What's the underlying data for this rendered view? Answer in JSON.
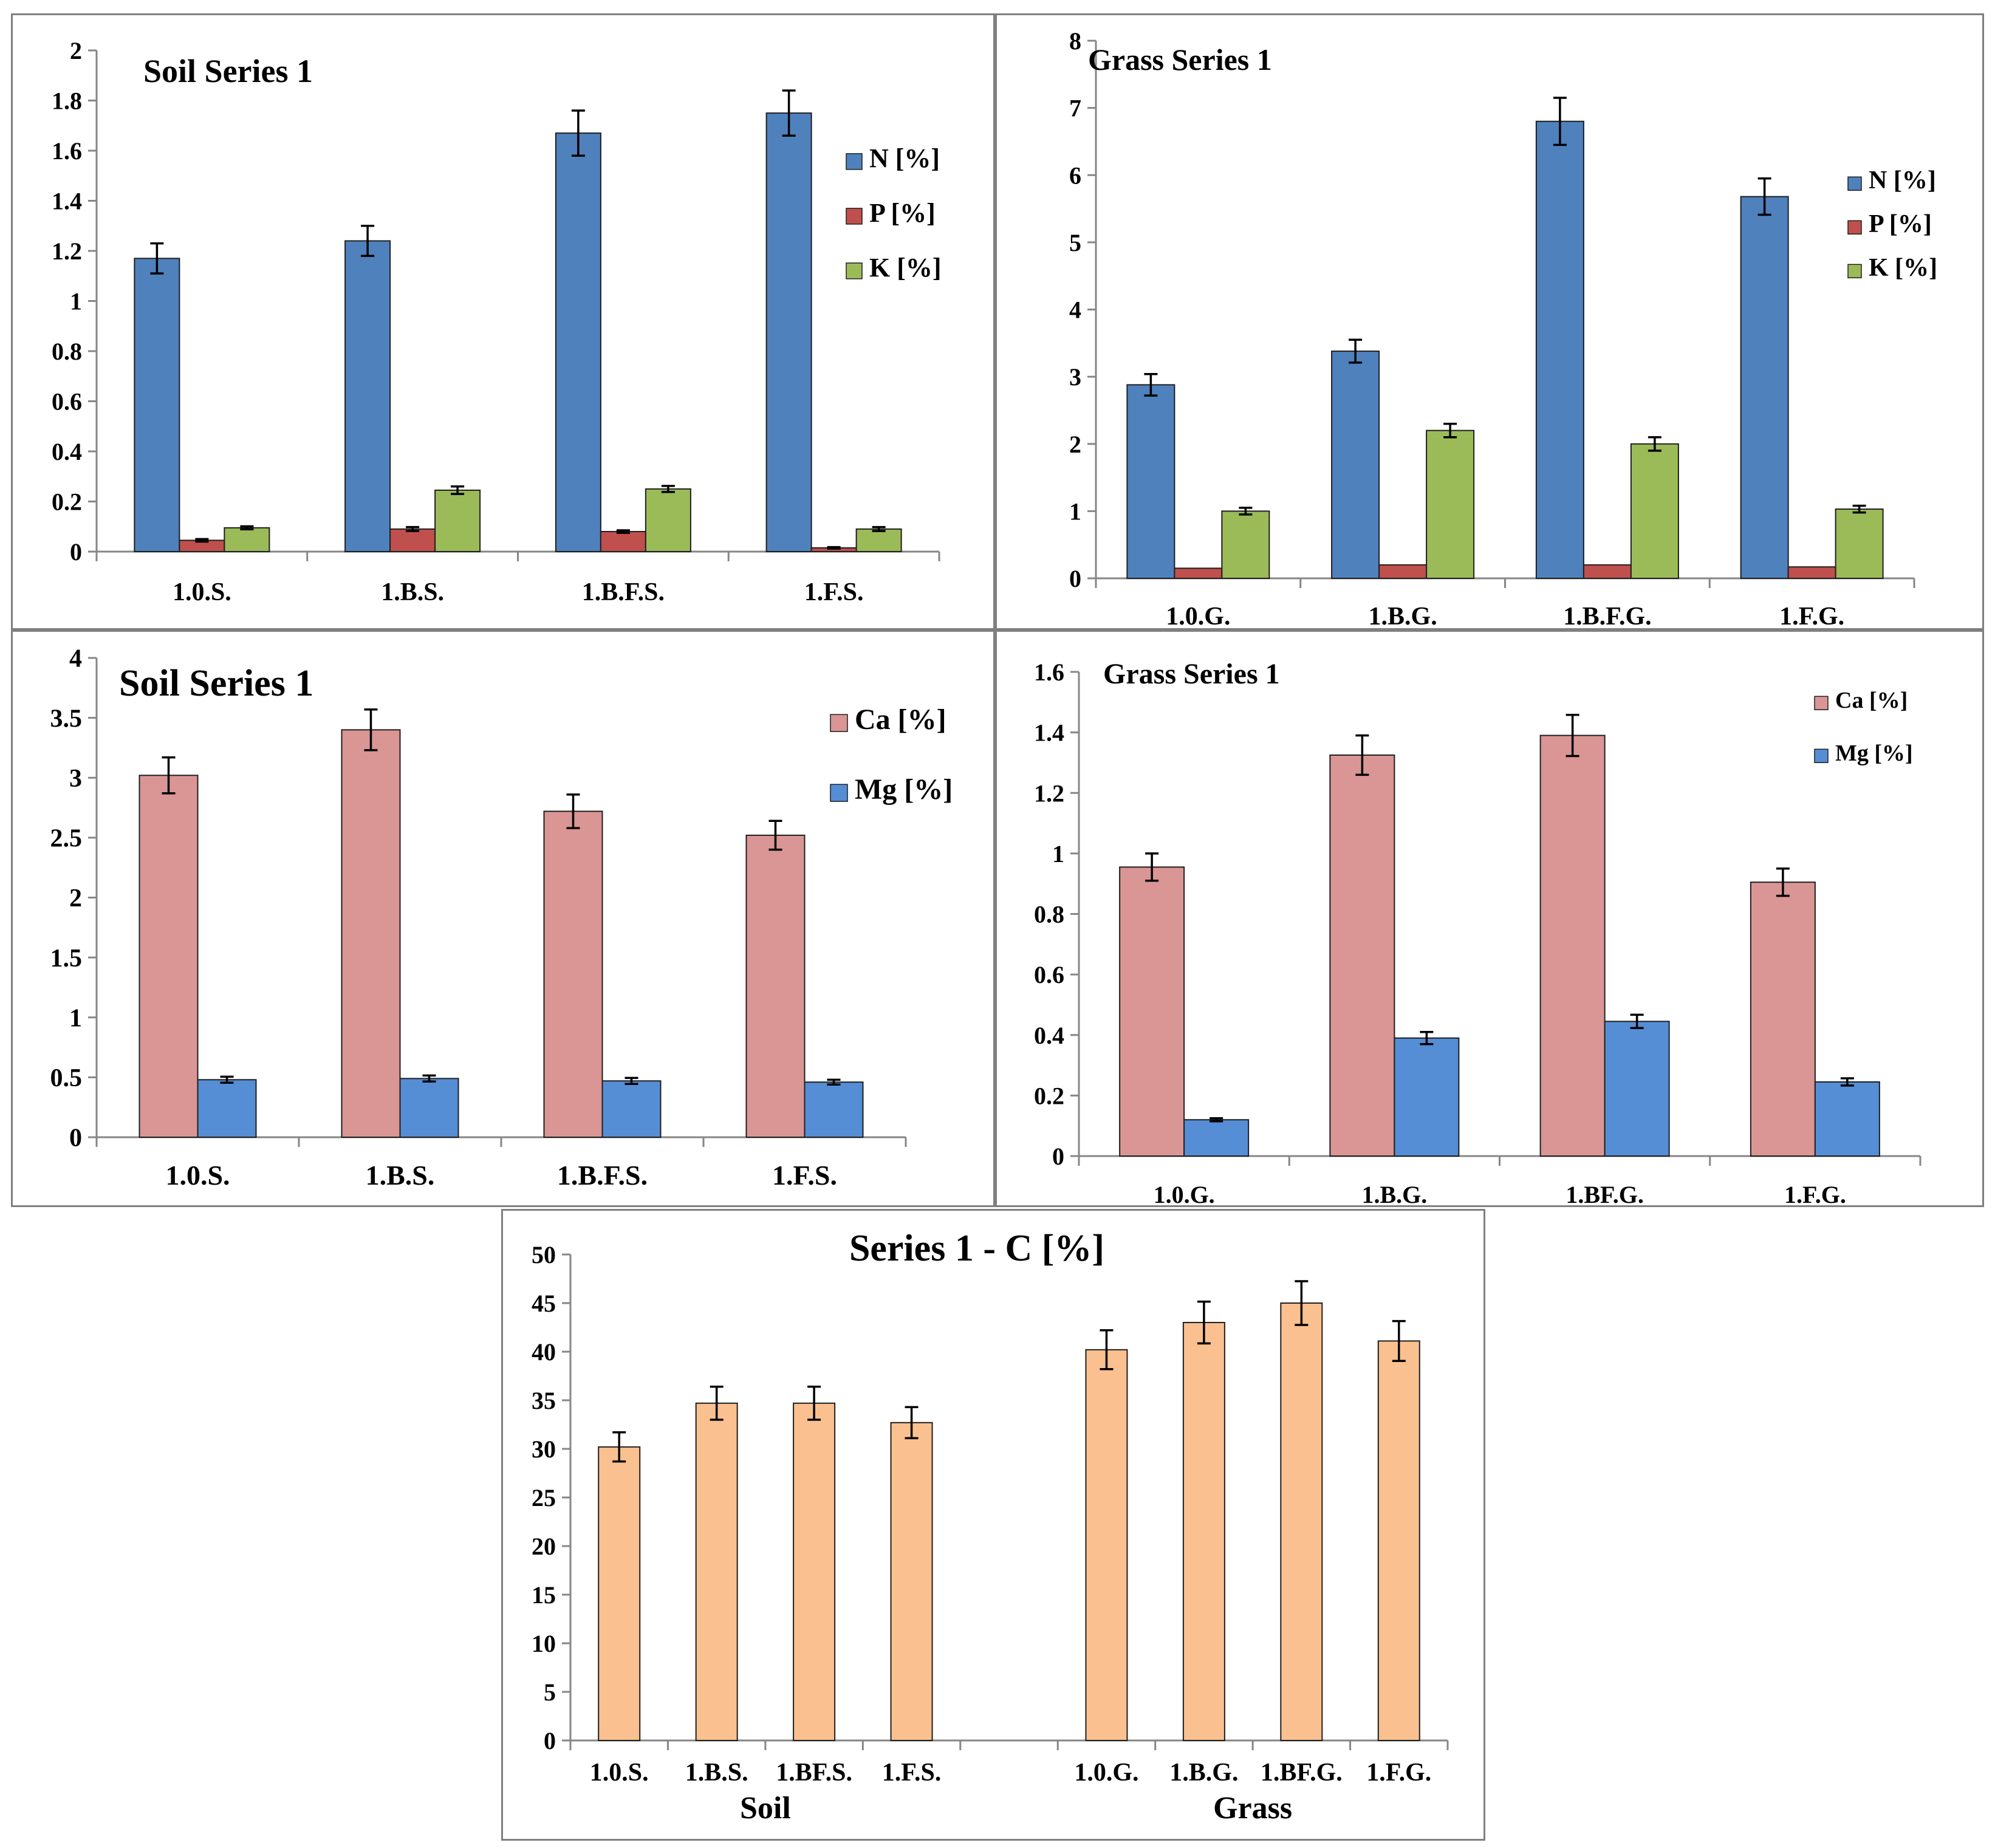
{
  "colors": {
    "N": "#4f81bd",
    "P": "#c0504d",
    "K": "#9bbb59",
    "Ca": "#d99694",
    "Mg": "#558ed5",
    "C": "#fac090"
  },
  "chart_data": [
    {
      "id": "soil-npk",
      "type": "bar",
      "title": "Soil Series 1",
      "categories": [
        "1.0.S.",
        "1.B.S.",
        "1.B.F.S.",
        "1.F.S."
      ],
      "ylim": [
        0,
        2
      ],
      "yticks": [
        "0",
        "0.2",
        "0.4",
        "0.6",
        "0.8",
        "1",
        "1.2",
        "1.4",
        "1.6",
        "1.8",
        "2"
      ],
      "yticks_values": [
        0,
        0.2,
        0.4,
        0.6,
        0.8,
        1,
        1.2,
        1.4,
        1.6,
        1.8,
        2
      ],
      "legend": "right",
      "series": [
        {
          "name": "N [%]",
          "key": "N",
          "values": [
            1.17,
            1.24,
            1.67,
            1.75
          ],
          "errors": [
            0.06,
            0.06,
            0.09,
            0.09
          ]
        },
        {
          "name": "P [%]",
          "key": "P",
          "values": [
            0.045,
            0.09,
            0.08,
            0.015
          ],
          "errors": [
            0.005,
            0.008,
            0.005,
            0.003
          ]
        },
        {
          "name": "K [%]",
          "key": "K",
          "values": [
            0.095,
            0.245,
            0.25,
            0.09
          ],
          "errors": [
            0.006,
            0.015,
            0.012,
            0.008
          ]
        }
      ]
    },
    {
      "id": "grass-npk",
      "type": "bar",
      "title": "Grass Series 1",
      "categories": [
        "1.0.G.",
        "1.B.G.",
        "1.B.F.G.",
        "1.F.G."
      ],
      "ylim": [
        0,
        8
      ],
      "yticks": [
        "0",
        "1",
        "2",
        "3",
        "4",
        "5",
        "6",
        "7",
        "8"
      ],
      "yticks_values": [
        0,
        1,
        2,
        3,
        4,
        5,
        6,
        7,
        8
      ],
      "legend": "right",
      "series": [
        {
          "name": "N [%]",
          "key": "N",
          "values": [
            2.88,
            3.38,
            6.8,
            5.68
          ],
          "errors": [
            0.16,
            0.17,
            0.35,
            0.27
          ]
        },
        {
          "name": "P [%]",
          "key": "P",
          "values": [
            0.15,
            0.2,
            0.2,
            0.17
          ],
          "errors": [
            0,
            0,
            0,
            0
          ]
        },
        {
          "name": "K [%]",
          "key": "K",
          "values": [
            1.0,
            2.2,
            2.0,
            1.03
          ],
          "errors": [
            0.05,
            0.1,
            0.1,
            0.05
          ]
        }
      ]
    },
    {
      "id": "soil-camg",
      "type": "bar",
      "title": "Soil Series 1",
      "categories": [
        "1.0.S.",
        "1.B.S.",
        "1.B.F.S.",
        "1.F.S."
      ],
      "ylim": [
        0,
        4
      ],
      "yticks": [
        "0",
        "0.5",
        "1",
        "1.5",
        "2",
        "2.5",
        "3",
        "3.5",
        "4"
      ],
      "yticks_values": [
        0,
        0.5,
        1,
        1.5,
        2,
        2.5,
        3,
        3.5,
        4
      ],
      "legend": "right",
      "series": [
        {
          "name": "Ca [%]",
          "key": "Ca",
          "values": [
            3.02,
            3.4,
            2.72,
            2.52
          ],
          "errors": [
            0.15,
            0.17,
            0.14,
            0.12
          ]
        },
        {
          "name": "Mg [%]",
          "key": "Mg",
          "values": [
            0.48,
            0.49,
            0.47,
            0.46
          ],
          "errors": [
            0.025,
            0.025,
            0.025,
            0.02
          ]
        }
      ]
    },
    {
      "id": "grass-camg",
      "type": "bar",
      "title": "Grass Series 1",
      "categories": [
        "1.0.G.",
        "1.B.G.",
        "1.BF.G.",
        "1.F.G."
      ],
      "ylim": [
        0,
        1.6
      ],
      "yticks": [
        "0",
        "0.2",
        "0.4",
        "0.6",
        "0.8",
        "1",
        "1.2",
        "1.4",
        "1.6"
      ],
      "yticks_values": [
        0,
        0.2,
        0.4,
        0.6,
        0.8,
        1,
        1.2,
        1.4,
        1.6
      ],
      "legend": "right",
      "series": [
        {
          "name": "Ca [%]",
          "key": "Ca",
          "values": [
            0.955,
            1.325,
            1.39,
            0.905
          ],
          "errors": [
            0.045,
            0.065,
            0.068,
            0.045
          ]
        },
        {
          "name": "Mg [%]",
          "key": "Mg",
          "values": [
            0.12,
            0.39,
            0.445,
            0.245
          ],
          "errors": [
            0.005,
            0.02,
            0.022,
            0.012
          ]
        }
      ]
    },
    {
      "id": "carbon",
      "type": "bar",
      "title": "Series 1 - C [%]",
      "categories": [
        "1.0.S.",
        "1.B.S.",
        "1.BF.S.",
        "1.F.S.",
        "1.0.G.",
        "1.B.G.",
        "1.BF.G.",
        "1.F.G."
      ],
      "groups": [
        "Soil",
        "Grass"
      ],
      "ylim": [
        0,
        50
      ],
      "yticks": [
        "0",
        "5",
        "10",
        "15",
        "20",
        "25",
        "30",
        "35",
        "40",
        "45",
        "50"
      ],
      "yticks_values": [
        0,
        5,
        10,
        15,
        20,
        25,
        30,
        35,
        40,
        45,
        50
      ],
      "legend": "none",
      "series": [
        {
          "name": "C [%]",
          "key": "C",
          "values": [
            30.2,
            34.7,
            34.7,
            32.7,
            40.2,
            43.0,
            45.0,
            41.1
          ],
          "errors": [
            1.5,
            1.7,
            1.7,
            1.6,
            2.0,
            2.15,
            2.25,
            2.05
          ]
        }
      ]
    }
  ]
}
